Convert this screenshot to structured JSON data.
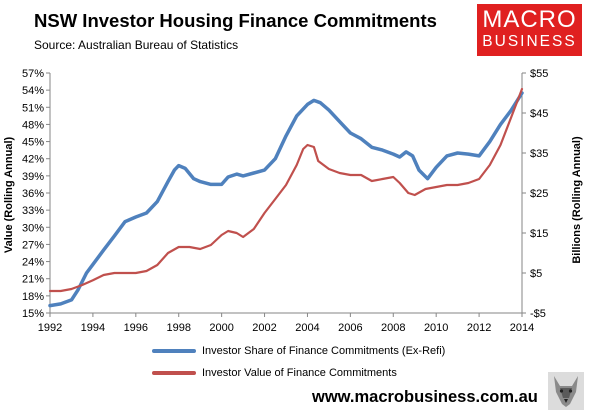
{
  "header": {
    "title": "NSW Investor Housing Finance Commitments",
    "subtitle": "Source: Australian Bureau of Statistics"
  },
  "brand": {
    "logo_line1": "MACRO",
    "logo_line2": "BUSINESS",
    "website": "www.macrobusiness.com.au",
    "logo_color": "#e02020"
  },
  "chart_data": {
    "type": "line",
    "title": "NSW Investor Housing Finance Commitments",
    "ylabel_left": "Value (Rolling Annual)",
    "ylabel_right": "Billions (Rolling Annual)",
    "x_ticks": [
      "1992",
      "1994",
      "1996",
      "1998",
      "2000",
      "2002",
      "2004",
      "2006",
      "2008",
      "2010",
      "2012",
      "2014"
    ],
    "xlim": [
      1992,
      2014
    ],
    "y_left_ticks": [
      "15%",
      "18%",
      "21%",
      "24%",
      "27%",
      "30%",
      "33%",
      "36%",
      "39%",
      "42%",
      "45%",
      "48%",
      "51%",
      "54%",
      "57%"
    ],
    "ylim_left": [
      15,
      57
    ],
    "y_right_ticks": [
      "-$5",
      "$5",
      "$15",
      "$25",
      "$35",
      "$45",
      "$55"
    ],
    "ylim_right": [
      -5,
      55
    ],
    "grid": false,
    "legend_position": "bottom",
    "series": [
      {
        "name": "Investor Share of Finance Commitments (Ex-Refi)",
        "axis": "left",
        "color": "#4f81bd",
        "points": [
          [
            1992.0,
            16.3
          ],
          [
            1992.5,
            16.6
          ],
          [
            1993.0,
            17.3
          ],
          [
            1993.3,
            19.0
          ],
          [
            1993.7,
            22.0
          ],
          [
            1994.0,
            23.5
          ],
          [
            1994.5,
            26.0
          ],
          [
            1995.0,
            28.5
          ],
          [
            1995.5,
            31.0
          ],
          [
            1996.0,
            31.8
          ],
          [
            1996.5,
            32.5
          ],
          [
            1997.0,
            34.5
          ],
          [
            1997.5,
            38.0
          ],
          [
            1997.8,
            40.0
          ],
          [
            1998.0,
            40.8
          ],
          [
            1998.3,
            40.3
          ],
          [
            1998.7,
            38.5
          ],
          [
            1999.0,
            38.0
          ],
          [
            1999.5,
            37.5
          ],
          [
            2000.0,
            37.5
          ],
          [
            2000.3,
            38.8
          ],
          [
            2000.7,
            39.3
          ],
          [
            2001.0,
            39.0
          ],
          [
            2001.5,
            39.5
          ],
          [
            2002.0,
            40.0
          ],
          [
            2002.5,
            42.0
          ],
          [
            2003.0,
            46.0
          ],
          [
            2003.5,
            49.5
          ],
          [
            2004.0,
            51.5
          ],
          [
            2004.3,
            52.2
          ],
          [
            2004.6,
            51.8
          ],
          [
            2005.0,
            50.5
          ],
          [
            2005.5,
            48.5
          ],
          [
            2006.0,
            46.5
          ],
          [
            2006.5,
            45.5
          ],
          [
            2007.0,
            44.0
          ],
          [
            2007.5,
            43.5
          ],
          [
            2008.0,
            42.8
          ],
          [
            2008.3,
            42.3
          ],
          [
            2008.6,
            43.2
          ],
          [
            2008.9,
            42.5
          ],
          [
            2009.2,
            40.0
          ],
          [
            2009.6,
            38.5
          ],
          [
            2010.0,
            40.5
          ],
          [
            2010.5,
            42.5
          ],
          [
            2011.0,
            43.0
          ],
          [
            2011.5,
            42.8
          ],
          [
            2012.0,
            42.5
          ],
          [
            2012.5,
            45.0
          ],
          [
            2013.0,
            48.0
          ],
          [
            2013.5,
            50.5
          ],
          [
            2014.0,
            53.5
          ]
        ]
      },
      {
        "name": "Investor Value of Finance Commitments",
        "axis": "right",
        "color": "#c0504d",
        "points": [
          [
            1992.0,
            0.5
          ],
          [
            1992.5,
            0.5
          ],
          [
            1993.0,
            1.0
          ],
          [
            1993.5,
            2.0
          ],
          [
            1994.0,
            3.2
          ],
          [
            1994.5,
            4.5
          ],
          [
            1995.0,
            5.0
          ],
          [
            1995.5,
            5.0
          ],
          [
            1996.0,
            5.0
          ],
          [
            1996.5,
            5.5
          ],
          [
            1997.0,
            7.0
          ],
          [
            1997.5,
            10.0
          ],
          [
            1998.0,
            11.5
          ],
          [
            1998.5,
            11.5
          ],
          [
            1999.0,
            11.0
          ],
          [
            1999.5,
            12.0
          ],
          [
            2000.0,
            14.5
          ],
          [
            2000.3,
            15.5
          ],
          [
            2000.7,
            15.0
          ],
          [
            2001.0,
            14.0
          ],
          [
            2001.5,
            16.0
          ],
          [
            2002.0,
            20.0
          ],
          [
            2002.5,
            23.5
          ],
          [
            2003.0,
            27.0
          ],
          [
            2003.5,
            32.0
          ],
          [
            2003.8,
            36.0
          ],
          [
            2004.0,
            37.0
          ],
          [
            2004.3,
            36.5
          ],
          [
            2004.5,
            33.0
          ],
          [
            2005.0,
            31.0
          ],
          [
            2005.5,
            30.0
          ],
          [
            2006.0,
            29.5
          ],
          [
            2006.5,
            29.5
          ],
          [
            2007.0,
            28.0
          ],
          [
            2007.5,
            28.5
          ],
          [
            2008.0,
            29.0
          ],
          [
            2008.3,
            27.5
          ],
          [
            2008.7,
            25.0
          ],
          [
            2009.0,
            24.5
          ],
          [
            2009.5,
            26.0
          ],
          [
            2010.0,
            26.5
          ],
          [
            2010.5,
            27.0
          ],
          [
            2011.0,
            27.0
          ],
          [
            2011.5,
            27.5
          ],
          [
            2012.0,
            28.5
          ],
          [
            2012.5,
            32.0
          ],
          [
            2013.0,
            37.0
          ],
          [
            2013.5,
            44.0
          ],
          [
            2014.0,
            51.0
          ]
        ]
      }
    ]
  }
}
